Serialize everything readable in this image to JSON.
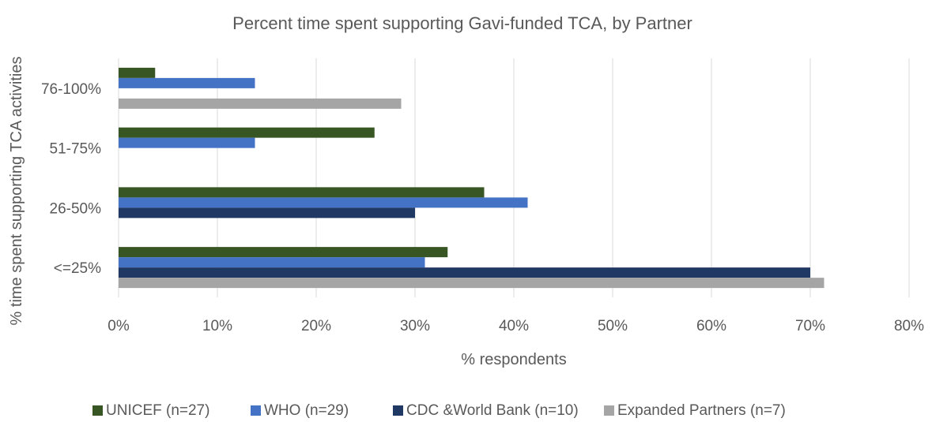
{
  "chart_data": {
    "type": "bar",
    "orientation": "horizontal",
    "title": "Percent time spent supporting Gavi-funded TCA, by Partner",
    "xlabel": "% respondents",
    "ylabel": "% time spent supporting TCA activities",
    "categories": [
      "76-100%",
      "51-75%",
      "26-50%",
      "<=25%"
    ],
    "xlim": [
      0,
      80
    ],
    "xticks": [
      "0%",
      "10%",
      "20%",
      "30%",
      "40%",
      "50%",
      "60%",
      "70%",
      "80%"
    ],
    "grid": true,
    "legend_position": "bottom",
    "series": [
      {
        "name": "UNICEF (n=27)",
        "color": "#375623",
        "values": [
          3.7,
          25.9,
          37.0,
          33.3
        ]
      },
      {
        "name": "WHO (n=29)",
        "color": "#4472C4",
        "values": [
          13.8,
          13.8,
          41.4,
          31.0
        ]
      },
      {
        "name": "CDC &World Bank (n=10)",
        "color": "#203864",
        "values": [
          0,
          0,
          30.0,
          70.0
        ]
      },
      {
        "name": "Expanded Partners (n=7)",
        "color": "#A5A5A5",
        "values": [
          28.6,
          0,
          0,
          71.4
        ]
      }
    ]
  }
}
